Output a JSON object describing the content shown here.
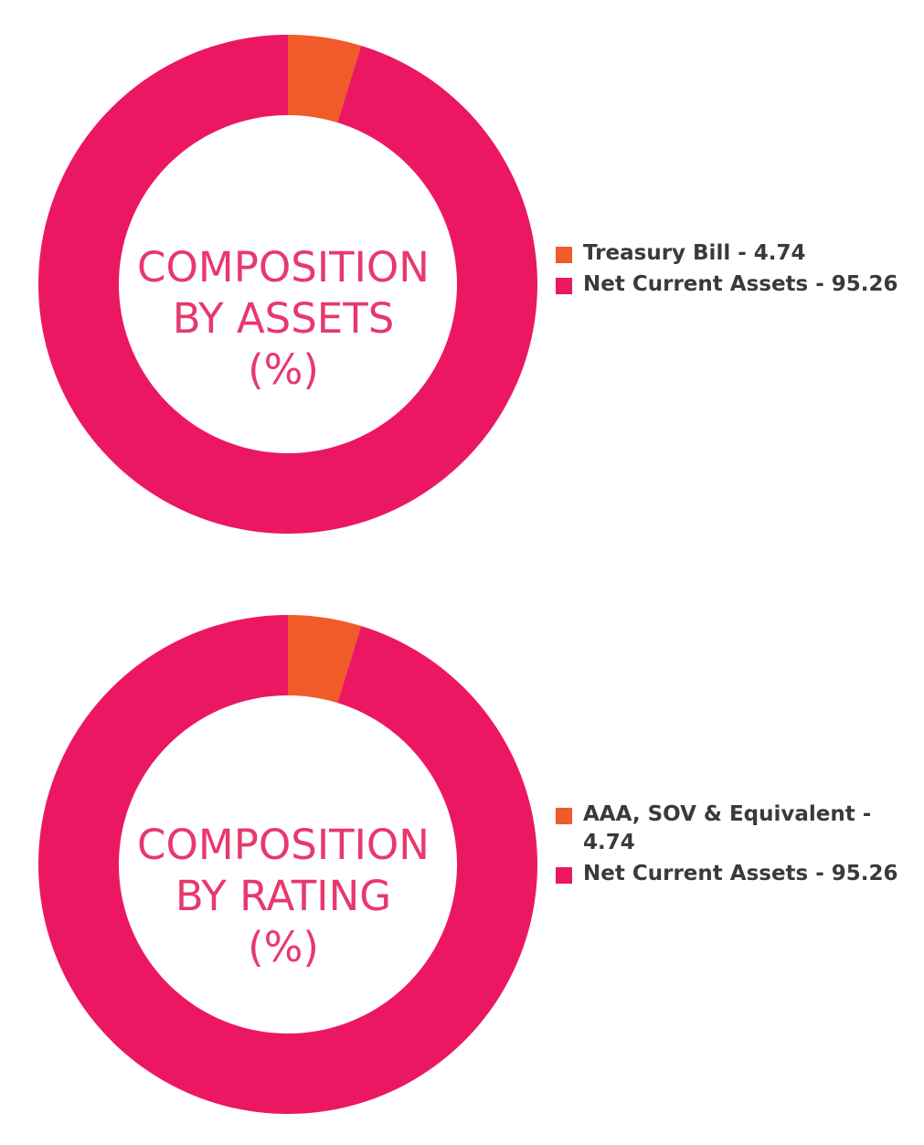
{
  "chart_data": [
    {
      "type": "pie",
      "title_lines": [
        "COMPOSITION",
        "BY ASSETS",
        "(%)"
      ],
      "slices": [
        {
          "label": "Treasury Bill",
          "value": 4.74,
          "legend_text": "Treasury Bill - 4.74",
          "color": "#f15a29"
        },
        {
          "label": "Net Current Assets",
          "value": 95.26,
          "legend_text": "Net Current Assets - 95.26",
          "color": "#ec1763"
        }
      ],
      "legend_position": "right"
    },
    {
      "type": "pie",
      "title_lines": [
        "COMPOSITION",
        "BY RATING",
        "(%)"
      ],
      "slices": [
        {
          "label": "AAA, SOV & Equivalent",
          "value": 4.74,
          "legend_text": "AAA, SOV & Equivalent - 4.74",
          "color": "#f15a29"
        },
        {
          "label": "Net Current Assets",
          "value": 95.26,
          "legend_text": "Net Current Assets - 95.26",
          "color": "#ec1763"
        }
      ],
      "legend_position": "right"
    }
  ],
  "colors": {
    "title_text": "#e8386e",
    "legend_text": "#3a3a3a"
  }
}
